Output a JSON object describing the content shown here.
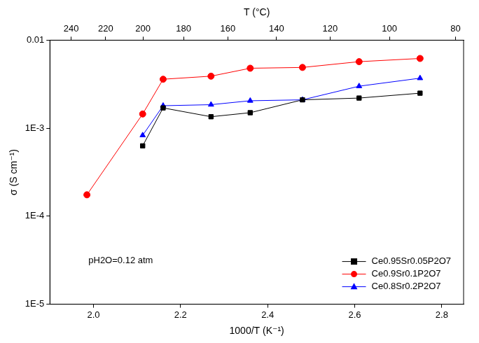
{
  "chart_data": {
    "type": "line",
    "x_label": "1000/T (K⁻¹)",
    "y_label": "σ (S cm⁻¹)",
    "x2_label": "T (°C)",
    "annotation": "pH2O=0.12 atm",
    "xlim": [
      1.9,
      2.85
    ],
    "xticks": [
      {
        "value": 2.0,
        "label": "2.0"
      },
      {
        "value": 2.2,
        "label": "2.2"
      },
      {
        "value": 2.4,
        "label": "2.4"
      },
      {
        "value": 2.6,
        "label": "2.6"
      },
      {
        "value": 2.8,
        "label": "2.8"
      }
    ],
    "x2lim": [
      253.2,
      77.7
    ],
    "x2ticks": [
      240,
      220,
      200,
      180,
      160,
      140,
      120,
      100,
      80
    ],
    "ylim": [
      1e-05,
      0.01
    ],
    "yticks": [
      {
        "value": 1e-05,
        "label": "1E-5"
      },
      {
        "value": 0.0001,
        "label": "1E-4"
      },
      {
        "value": 0.001,
        "label": "1E-3"
      },
      0.01
    ],
    "log": "y",
    "grid": false,
    "legend": "lower right",
    "series": [
      {
        "name": "Ce0.95Sr0.05P2O7",
        "color": "#000000",
        "marker": "square",
        "x": [
          2.113,
          2.16,
          2.27,
          2.36,
          2.48,
          2.61,
          2.75
        ],
        "values": [
          0.00063,
          0.0017,
          0.00135,
          0.0015,
          0.0021,
          0.0022,
          0.0025
        ]
      },
      {
        "name": "Ce0.9Sr0.1P2O7",
        "color": "#ff0000",
        "marker": "circle",
        "x": [
          1.985,
          2.113,
          2.16,
          2.27,
          2.36,
          2.48,
          2.61,
          2.75
        ],
        "values": [
          0.000175,
          0.00145,
          0.0036,
          0.0039,
          0.0048,
          0.0049,
          0.0057,
          0.0062
        ]
      },
      {
        "name": "Ce0.8Sr0.2P2O7",
        "color": "#0000ff",
        "marker": "triangle",
        "x": [
          2.113,
          2.16,
          2.27,
          2.36,
          2.48,
          2.61,
          2.75
        ],
        "values": [
          0.00083,
          0.0018,
          0.00185,
          0.00205,
          0.0021,
          0.003,
          0.0037
        ]
      }
    ]
  }
}
